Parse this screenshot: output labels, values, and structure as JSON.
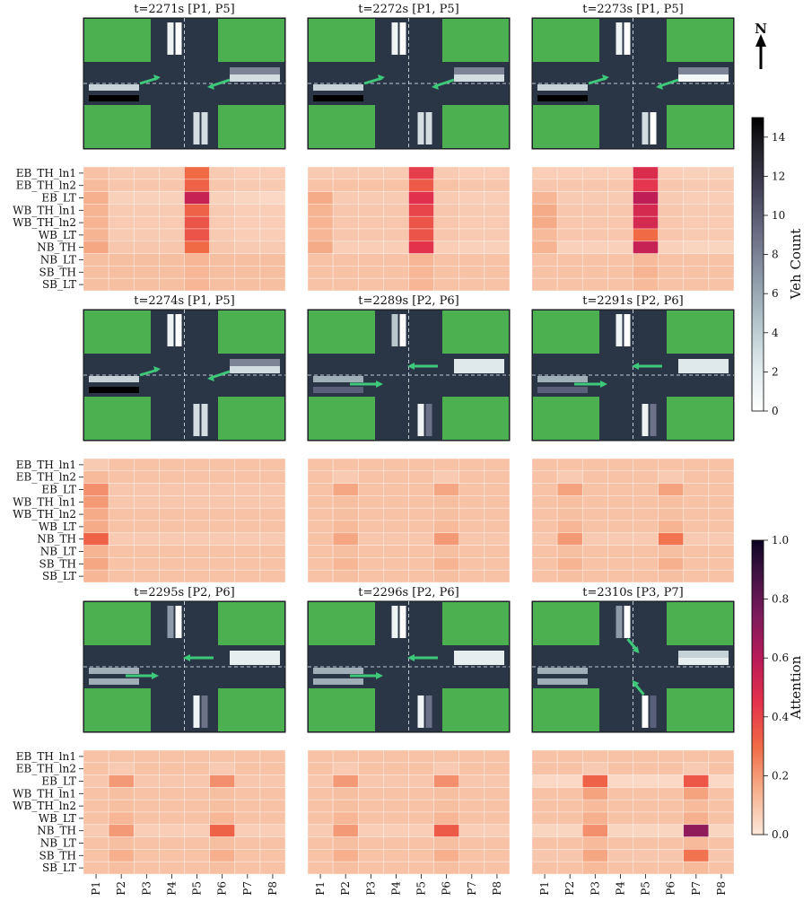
{
  "chart_data": {
    "type": "heatmap",
    "row_labels": [
      "EB_TH_ln1",
      "EB_TH_ln2",
      "EB_LT",
      "WB_TH_ln1",
      "WB_TH_ln2",
      "WB_LT",
      "NB_TH",
      "NB_LT",
      "SB_TH",
      "SB_LT"
    ],
    "col_labels": [
      "P1",
      "P2",
      "P3",
      "P4",
      "P5",
      "P6",
      "P7",
      "P8"
    ],
    "north_label": "N",
    "colorbars": [
      {
        "label": "Veh Count",
        "ticks": [
          0,
          2,
          4,
          6,
          8,
          10,
          12,
          14
        ],
        "range": [
          0,
          15
        ],
        "colors": [
          "#ffffff",
          "#2b2b36",
          "#000000"
        ]
      },
      {
        "label": "Attention",
        "ticks": [
          0.0,
          0.2,
          0.4,
          0.6,
          0.8,
          1.0
        ],
        "tick_labels": [
          "0.0",
          "0.2",
          "0.4",
          "0.6",
          "0.8",
          "1.0"
        ],
        "range": [
          0,
          1
        ]
      }
    ],
    "panels": [
      {
        "title": "t=2271s [P1, P5]",
        "attention": [
          [
            0.1,
            0.08,
            0.08,
            0.08,
            0.3,
            0.08,
            0.07,
            0.07
          ],
          [
            0.12,
            0.09,
            0.09,
            0.09,
            0.32,
            0.09,
            0.08,
            0.08
          ],
          [
            0.15,
            0.06,
            0.06,
            0.06,
            0.55,
            0.06,
            0.05,
            0.04
          ],
          [
            0.14,
            0.08,
            0.08,
            0.08,
            0.32,
            0.08,
            0.07,
            0.07
          ],
          [
            0.14,
            0.08,
            0.08,
            0.08,
            0.36,
            0.08,
            0.07,
            0.07
          ],
          [
            0.14,
            0.08,
            0.08,
            0.08,
            0.36,
            0.08,
            0.07,
            0.07
          ],
          [
            0.17,
            0.09,
            0.09,
            0.09,
            0.3,
            0.09,
            0.08,
            0.08
          ],
          [
            0.11,
            0.11,
            0.11,
            0.11,
            0.13,
            0.11,
            0.11,
            0.11
          ],
          [
            0.11,
            0.11,
            0.11,
            0.11,
            0.13,
            0.11,
            0.11,
            0.11
          ],
          [
            0.11,
            0.11,
            0.11,
            0.11,
            0.13,
            0.11,
            0.11,
            0.11
          ]
        ]
      },
      {
        "title": "t=2272s [P1, P5]",
        "attention": [
          [
            0.08,
            0.08,
            0.08,
            0.08,
            0.42,
            0.08,
            0.07,
            0.07
          ],
          [
            0.1,
            0.1,
            0.1,
            0.1,
            0.34,
            0.1,
            0.09,
            0.09
          ],
          [
            0.16,
            0.08,
            0.08,
            0.08,
            0.46,
            0.08,
            0.07,
            0.07
          ],
          [
            0.14,
            0.09,
            0.09,
            0.09,
            0.4,
            0.09,
            0.08,
            0.08
          ],
          [
            0.14,
            0.09,
            0.09,
            0.09,
            0.36,
            0.09,
            0.08,
            0.08
          ],
          [
            0.13,
            0.09,
            0.09,
            0.09,
            0.36,
            0.09,
            0.08,
            0.08
          ],
          [
            0.16,
            0.07,
            0.07,
            0.07,
            0.45,
            0.07,
            0.06,
            0.06
          ],
          [
            0.1,
            0.1,
            0.1,
            0.1,
            0.13,
            0.1,
            0.1,
            0.1
          ],
          [
            0.1,
            0.1,
            0.1,
            0.1,
            0.13,
            0.1,
            0.1,
            0.1
          ],
          [
            0.1,
            0.1,
            0.1,
            0.1,
            0.13,
            0.1,
            0.1,
            0.1
          ]
        ]
      },
      {
        "title": "t=2273s [P1, P5]",
        "attention": [
          [
            0.07,
            0.07,
            0.07,
            0.07,
            0.48,
            0.07,
            0.06,
            0.06
          ],
          [
            0.09,
            0.09,
            0.09,
            0.09,
            0.44,
            0.09,
            0.08,
            0.08
          ],
          [
            0.13,
            0.08,
            0.08,
            0.08,
            0.58,
            0.08,
            0.07,
            0.07
          ],
          [
            0.16,
            0.09,
            0.09,
            0.09,
            0.5,
            0.09,
            0.08,
            0.08
          ],
          [
            0.16,
            0.09,
            0.09,
            0.09,
            0.5,
            0.09,
            0.08,
            0.08
          ],
          [
            0.12,
            0.09,
            0.09,
            0.09,
            0.3,
            0.09,
            0.08,
            0.08
          ],
          [
            0.14,
            0.06,
            0.06,
            0.06,
            0.55,
            0.06,
            0.05,
            0.05
          ],
          [
            0.1,
            0.1,
            0.1,
            0.1,
            0.12,
            0.1,
            0.1,
            0.1
          ],
          [
            0.1,
            0.1,
            0.1,
            0.1,
            0.14,
            0.1,
            0.1,
            0.1
          ],
          [
            0.1,
            0.1,
            0.1,
            0.1,
            0.12,
            0.1,
            0.1,
            0.1
          ]
        ]
      },
      {
        "title": "t=2274s [P1, P5]",
        "attention": [
          [
            0.08,
            0.1,
            0.1,
            0.1,
            0.1,
            0.1,
            0.1,
            0.1
          ],
          [
            0.12,
            0.1,
            0.1,
            0.1,
            0.1,
            0.1,
            0.1,
            0.1
          ],
          [
            0.22,
            0.09,
            0.09,
            0.09,
            0.09,
            0.09,
            0.09,
            0.09
          ],
          [
            0.2,
            0.09,
            0.09,
            0.09,
            0.09,
            0.09,
            0.09,
            0.09
          ],
          [
            0.16,
            0.1,
            0.1,
            0.1,
            0.1,
            0.1,
            0.1,
            0.1
          ],
          [
            0.16,
            0.1,
            0.1,
            0.1,
            0.1,
            0.1,
            0.1,
            0.1
          ],
          [
            0.32,
            0.08,
            0.08,
            0.08,
            0.08,
            0.08,
            0.08,
            0.08
          ],
          [
            0.14,
            0.1,
            0.1,
            0.1,
            0.1,
            0.1,
            0.1,
            0.1
          ],
          [
            0.17,
            0.1,
            0.1,
            0.1,
            0.1,
            0.1,
            0.1,
            0.1
          ],
          [
            0.13,
            0.1,
            0.1,
            0.1,
            0.1,
            0.1,
            0.1,
            0.1
          ]
        ]
      },
      {
        "title": "t=2289s [P2, P6]",
        "attention": [
          [
            0.1,
            0.1,
            0.1,
            0.1,
            0.1,
            0.1,
            0.1,
            0.1
          ],
          [
            0.1,
            0.08,
            0.1,
            0.1,
            0.1,
            0.08,
            0.1,
            0.1
          ],
          [
            0.1,
            0.17,
            0.1,
            0.1,
            0.1,
            0.17,
            0.1,
            0.1
          ],
          [
            0.1,
            0.11,
            0.1,
            0.1,
            0.1,
            0.11,
            0.1,
            0.1
          ],
          [
            0.1,
            0.11,
            0.1,
            0.1,
            0.1,
            0.11,
            0.1,
            0.1
          ],
          [
            0.1,
            0.12,
            0.1,
            0.1,
            0.1,
            0.12,
            0.1,
            0.1
          ],
          [
            0.1,
            0.17,
            0.09,
            0.09,
            0.09,
            0.2,
            0.09,
            0.09
          ],
          [
            0.1,
            0.11,
            0.1,
            0.1,
            0.1,
            0.11,
            0.1,
            0.1
          ],
          [
            0.1,
            0.13,
            0.1,
            0.1,
            0.1,
            0.14,
            0.1,
            0.1
          ],
          [
            0.1,
            0.11,
            0.1,
            0.1,
            0.1,
            0.11,
            0.1,
            0.1
          ]
        ]
      },
      {
        "title": "t=2291s [P2, P6]",
        "attention": [
          [
            0.1,
            0.1,
            0.1,
            0.1,
            0.1,
            0.1,
            0.1,
            0.1
          ],
          [
            0.1,
            0.08,
            0.1,
            0.1,
            0.1,
            0.08,
            0.1,
            0.1
          ],
          [
            0.1,
            0.18,
            0.1,
            0.1,
            0.1,
            0.18,
            0.1,
            0.1
          ],
          [
            0.1,
            0.11,
            0.1,
            0.1,
            0.1,
            0.11,
            0.1,
            0.1
          ],
          [
            0.1,
            0.11,
            0.1,
            0.1,
            0.1,
            0.11,
            0.1,
            0.1
          ],
          [
            0.1,
            0.13,
            0.1,
            0.1,
            0.1,
            0.14,
            0.1,
            0.1
          ],
          [
            0.09,
            0.2,
            0.08,
            0.08,
            0.08,
            0.28,
            0.08,
            0.08
          ],
          [
            0.1,
            0.11,
            0.1,
            0.1,
            0.1,
            0.11,
            0.1,
            0.1
          ],
          [
            0.1,
            0.14,
            0.1,
            0.1,
            0.1,
            0.15,
            0.1,
            0.1
          ],
          [
            0.1,
            0.11,
            0.1,
            0.1,
            0.1,
            0.11,
            0.1,
            0.1
          ]
        ]
      },
      {
        "title": "t=2295s [P2, P6]",
        "attention": [
          [
            0.1,
            0.1,
            0.1,
            0.1,
            0.1,
            0.1,
            0.1,
            0.1
          ],
          [
            0.1,
            0.08,
            0.1,
            0.1,
            0.1,
            0.08,
            0.1,
            0.1
          ],
          [
            0.09,
            0.2,
            0.09,
            0.09,
            0.09,
            0.22,
            0.09,
            0.09
          ],
          [
            0.1,
            0.11,
            0.1,
            0.1,
            0.1,
            0.11,
            0.1,
            0.1
          ],
          [
            0.1,
            0.11,
            0.1,
            0.1,
            0.1,
            0.11,
            0.1,
            0.1
          ],
          [
            0.1,
            0.13,
            0.1,
            0.1,
            0.1,
            0.13,
            0.1,
            0.1
          ],
          [
            0.08,
            0.2,
            0.07,
            0.07,
            0.07,
            0.32,
            0.07,
            0.07
          ],
          [
            0.1,
            0.11,
            0.1,
            0.1,
            0.1,
            0.11,
            0.1,
            0.1
          ],
          [
            0.1,
            0.15,
            0.1,
            0.1,
            0.1,
            0.15,
            0.1,
            0.1
          ],
          [
            0.1,
            0.11,
            0.1,
            0.1,
            0.1,
            0.11,
            0.1,
            0.1
          ]
        ]
      },
      {
        "title": "t=2296s [P2, P6]",
        "attention": [
          [
            0.1,
            0.1,
            0.1,
            0.1,
            0.1,
            0.1,
            0.1,
            0.1
          ],
          [
            0.1,
            0.08,
            0.1,
            0.1,
            0.1,
            0.08,
            0.1,
            0.1
          ],
          [
            0.09,
            0.2,
            0.09,
            0.09,
            0.09,
            0.22,
            0.09,
            0.09
          ],
          [
            0.1,
            0.11,
            0.1,
            0.1,
            0.1,
            0.11,
            0.1,
            0.1
          ],
          [
            0.1,
            0.11,
            0.1,
            0.1,
            0.1,
            0.11,
            0.1,
            0.1
          ],
          [
            0.1,
            0.13,
            0.1,
            0.1,
            0.1,
            0.13,
            0.1,
            0.1
          ],
          [
            0.08,
            0.2,
            0.07,
            0.07,
            0.07,
            0.34,
            0.07,
            0.07
          ],
          [
            0.1,
            0.11,
            0.1,
            0.1,
            0.1,
            0.11,
            0.1,
            0.1
          ],
          [
            0.1,
            0.15,
            0.1,
            0.1,
            0.1,
            0.15,
            0.1,
            0.1
          ],
          [
            0.1,
            0.11,
            0.1,
            0.1,
            0.1,
            0.11,
            0.1,
            0.1
          ]
        ]
      },
      {
        "title": "t=2310s [P3, P7]",
        "attention": [
          [
            0.1,
            0.1,
            0.1,
            0.1,
            0.1,
            0.1,
            0.1,
            0.1
          ],
          [
            0.1,
            0.1,
            0.08,
            0.1,
            0.1,
            0.1,
            0.08,
            0.1
          ],
          [
            0.04,
            0.04,
            0.32,
            0.04,
            0.04,
            0.04,
            0.35,
            0.04
          ],
          [
            0.1,
            0.1,
            0.18,
            0.1,
            0.1,
            0.1,
            0.18,
            0.1
          ],
          [
            0.1,
            0.1,
            0.12,
            0.1,
            0.1,
            0.1,
            0.12,
            0.1
          ],
          [
            0.1,
            0.1,
            0.15,
            0.1,
            0.1,
            0.1,
            0.15,
            0.1
          ],
          [
            0.05,
            0.05,
            0.22,
            0.05,
            0.05,
            0.05,
            0.7,
            0.05
          ],
          [
            0.1,
            0.1,
            0.12,
            0.1,
            0.1,
            0.1,
            0.12,
            0.1
          ],
          [
            0.09,
            0.09,
            0.17,
            0.09,
            0.09,
            0.09,
            0.28,
            0.09
          ],
          [
            0.1,
            0.1,
            0.12,
            0.1,
            0.1,
            0.1,
            0.12,
            0.1
          ]
        ]
      }
    ]
  }
}
